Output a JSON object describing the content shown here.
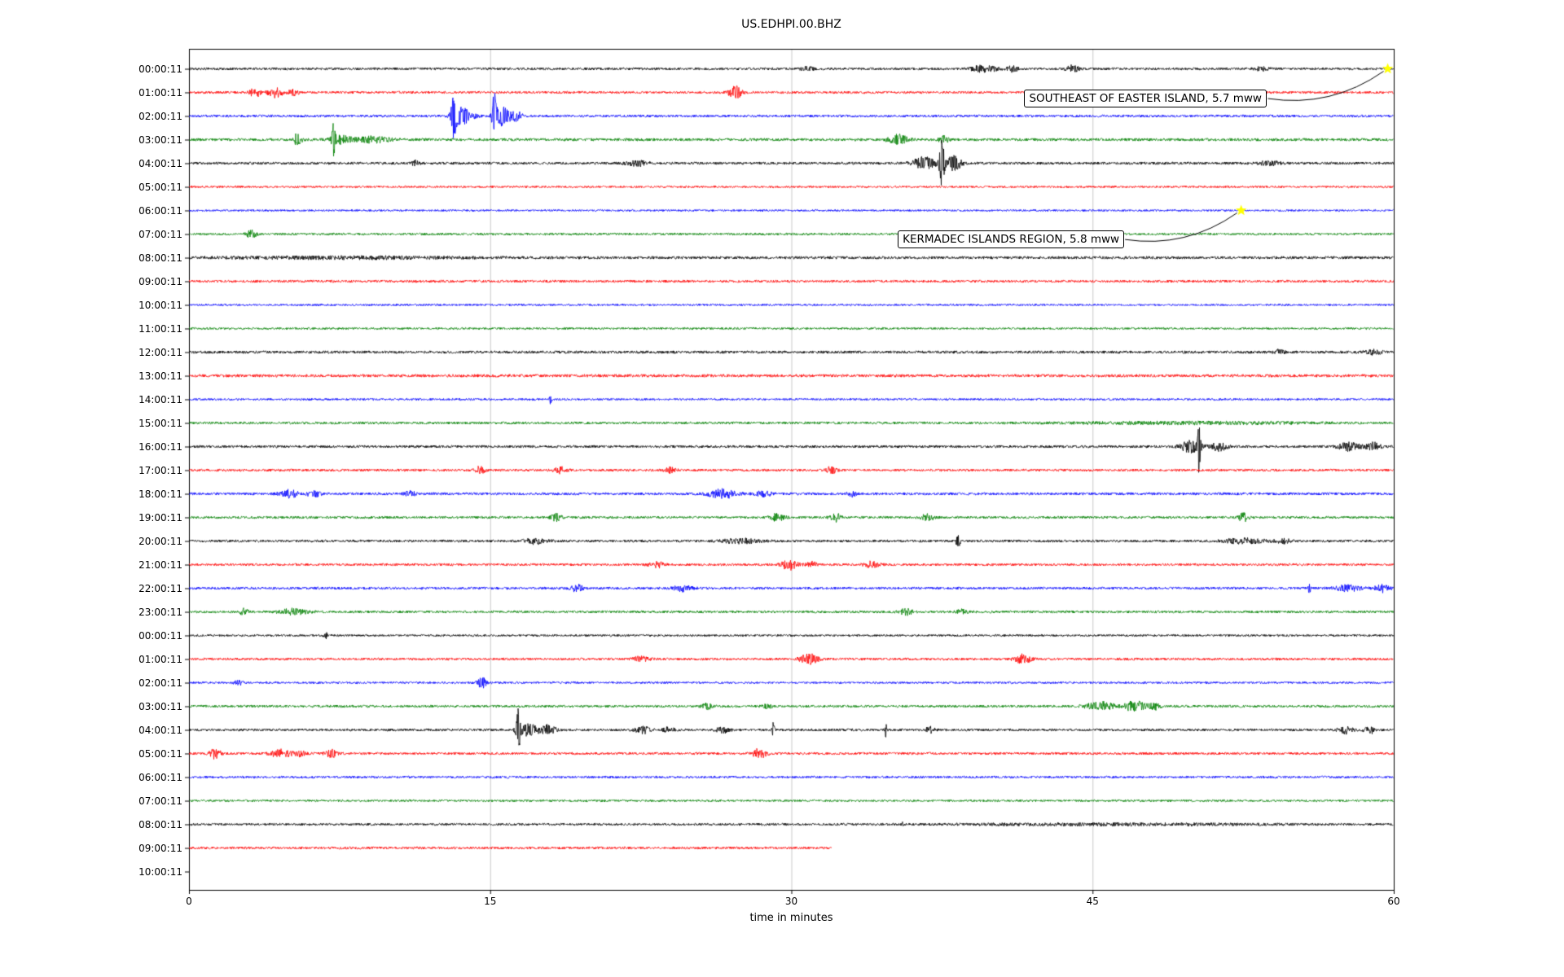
{
  "title": "US.EDHPI.00.BHZ",
  "axes": {
    "xlabel": "time in minutes",
    "x_ticks": [
      0,
      15,
      30,
      45,
      60
    ],
    "xlim": [
      0,
      60
    ],
    "grid_x": [
      15,
      30,
      45
    ],
    "grid_color": "#c8c8c8",
    "frame_color": "#000000"
  },
  "chart_data": {
    "type": "line",
    "variant": "helicorder-dayplot",
    "title": "US.EDHPI.00.BHZ",
    "xlabel": "time in minutes",
    "x_unit": "minutes",
    "xlim": [
      0,
      60
    ],
    "row_duration_minutes": 60,
    "grid": "vertical-only",
    "colors": {
      "black": "#000000",
      "red": "#ff0000",
      "blue": "#0000ff",
      "green": "#008000"
    },
    "rows": [
      {
        "label": "00:00:11",
        "color": "black",
        "base_amp": 1.5,
        "end": 60,
        "events": [
          [
            30.8,
            3,
            0.3
          ],
          [
            39.6,
            4.5,
            0.6
          ],
          [
            41,
            4,
            0.25
          ],
          [
            44,
            4,
            0.3
          ],
          [
            53.5,
            2.5,
            0.4
          ]
        ]
      },
      {
        "label": "01:00:11",
        "color": "red",
        "base_amp": 1.5,
        "end": 60,
        "events": [
          [
            3.3,
            6,
            0.25
          ],
          [
            4.3,
            6,
            0.35
          ],
          [
            5.2,
            4,
            0.25
          ],
          [
            27.2,
            8,
            0.3
          ]
        ]
      },
      {
        "label": "02:00:11",
        "color": "blue",
        "base_amp": 1.5,
        "end": 60,
        "events": [
          [
            13.2,
            26,
            0.12
          ],
          [
            13.6,
            10,
            0.5
          ],
          [
            15.2,
            28,
            0.1
          ],
          [
            15.6,
            12,
            0.35
          ],
          [
            16.3,
            6,
            0.3
          ]
        ]
      },
      {
        "label": "03:00:11",
        "color": "green",
        "base_amp": 1.7,
        "end": 60,
        "events": [
          [
            5.4,
            7,
            0.2
          ],
          [
            7.2,
            20,
            0.08
          ],
          [
            7.6,
            5,
            0.5
          ],
          [
            9.2,
            3.5,
            0.8
          ],
          [
            35.3,
            6,
            0.45
          ],
          [
            37.6,
            4,
            0.25
          ]
        ]
      },
      {
        "label": "04:00:11",
        "color": "black",
        "base_amp": 1.6,
        "end": 60,
        "events": [
          [
            11.3,
            3,
            0.2
          ],
          [
            22.3,
            3.5,
            0.5
          ],
          [
            36.6,
            7,
            0.6
          ],
          [
            37.5,
            28,
            0.12
          ],
          [
            38.1,
            9,
            0.35
          ],
          [
            53.8,
            2.5,
            0.5
          ]
        ]
      },
      {
        "label": "05:00:11",
        "color": "red",
        "base_amp": 1.3,
        "end": 60,
        "events": []
      },
      {
        "label": "06:00:11",
        "color": "blue",
        "base_amp": 1.2,
        "end": 60,
        "events": []
      },
      {
        "label": "07:00:11",
        "color": "green",
        "base_amp": 1.4,
        "end": 60,
        "events": [
          [
            3.1,
            4.5,
            0.25
          ]
        ]
      },
      {
        "label": "08:00:11",
        "color": "black",
        "base_amp": 1.7,
        "end": 60,
        "events": [
          [
            8,
            1.2,
            6
          ]
        ]
      },
      {
        "label": "09:00:11",
        "color": "red",
        "base_amp": 1.5,
        "end": 60,
        "events": []
      },
      {
        "label": "10:00:11",
        "color": "blue",
        "base_amp": 1.2,
        "end": 60,
        "events": []
      },
      {
        "label": "11:00:11",
        "color": "green",
        "base_amp": 1.3,
        "end": 60,
        "events": []
      },
      {
        "label": "12:00:11",
        "color": "black",
        "base_amp": 1.7,
        "end": 60,
        "events": [
          [
            54.3,
            2.5,
            0.25
          ],
          [
            59,
            2.5,
            0.4
          ]
        ]
      },
      {
        "label": "13:00:11",
        "color": "red",
        "base_amp": 1.8,
        "end": 60,
        "events": []
      },
      {
        "label": "14:00:11",
        "color": "blue",
        "base_amp": 1.3,
        "end": 60,
        "events": [
          [
            18,
            5,
            0.06
          ]
        ]
      },
      {
        "label": "15:00:11",
        "color": "green",
        "base_amp": 1.5,
        "end": 60,
        "events": [
          [
            50,
            1.2,
            6
          ]
        ]
      },
      {
        "label": "16:00:11",
        "color": "black",
        "base_amp": 1.6,
        "end": 60,
        "events": [
          [
            49.9,
            7,
            0.5
          ],
          [
            50.3,
            38,
            0.07
          ],
          [
            51.3,
            5,
            0.4
          ],
          [
            57.8,
            5,
            0.5
          ],
          [
            59,
            4.5,
            0.35
          ]
        ]
      },
      {
        "label": "17:00:11",
        "color": "red",
        "base_amp": 1.5,
        "end": 60,
        "events": [
          [
            14.5,
            4.5,
            0.25
          ],
          [
            18.5,
            3.5,
            0.35
          ],
          [
            24,
            3.5,
            0.25
          ],
          [
            32,
            4.5,
            0.25
          ]
        ]
      },
      {
        "label": "18:00:11",
        "color": "blue",
        "base_amp": 1.6,
        "end": 60,
        "events": [
          [
            5,
            4.5,
            0.5
          ],
          [
            6.2,
            3.5,
            0.35
          ],
          [
            11,
            3.5,
            0.25
          ],
          [
            26.6,
            5.5,
            0.7
          ],
          [
            28.6,
            4.5,
            0.35
          ],
          [
            33,
            3,
            0.25
          ]
        ]
      },
      {
        "label": "19:00:11",
        "color": "green",
        "base_amp": 1.5,
        "end": 60,
        "events": [
          [
            18.3,
            4.5,
            0.25
          ],
          [
            29.3,
            4.5,
            0.35
          ],
          [
            32.2,
            5,
            0.25
          ],
          [
            36.8,
            3.5,
            0.35
          ],
          [
            52.5,
            5,
            0.25
          ]
        ]
      },
      {
        "label": "20:00:11",
        "color": "black",
        "base_amp": 1.5,
        "end": 60,
        "events": [
          [
            17.3,
            3.5,
            0.6
          ],
          [
            27.5,
            2.5,
            1
          ],
          [
            38.3,
            8,
            0.1
          ],
          [
            52.5,
            3,
            1
          ],
          [
            54.5,
            2.5,
            0.4
          ]
        ]
      },
      {
        "label": "21:00:11",
        "color": "red",
        "base_amp": 1.5,
        "end": 60,
        "events": [
          [
            23.3,
            3.5,
            0.35
          ],
          [
            29.9,
            6,
            0.4
          ],
          [
            31,
            3.5,
            0.25
          ],
          [
            34,
            3.5,
            0.4
          ]
        ]
      },
      {
        "label": "22:00:11",
        "color": "blue",
        "base_amp": 1.5,
        "end": 60,
        "events": [
          [
            19.3,
            4.5,
            0.3
          ],
          [
            24.6,
            3.5,
            0.5
          ],
          [
            55.8,
            7,
            0.07
          ],
          [
            57.7,
            3.5,
            0.7
          ],
          [
            59.4,
            4.5,
            0.35
          ]
        ]
      },
      {
        "label": "23:00:11",
        "color": "green",
        "base_amp": 1.5,
        "end": 60,
        "events": [
          [
            2.7,
            3.5,
            0.25
          ],
          [
            5.2,
            3.5,
            0.7
          ],
          [
            35.7,
            3.5,
            0.35
          ],
          [
            38.5,
            2.5,
            0.3
          ]
        ]
      },
      {
        "label": "00:00:11",
        "color": "black",
        "base_amp": 1.3,
        "end": 60,
        "events": [
          [
            6.8,
            3.5,
            0.1
          ]
        ]
      },
      {
        "label": "01:00:11",
        "color": "red",
        "base_amp": 1.5,
        "end": 60,
        "events": [
          [
            22.5,
            3.5,
            0.35
          ],
          [
            30.9,
            6,
            0.45
          ],
          [
            41.5,
            5.5,
            0.4
          ]
        ]
      },
      {
        "label": "02:00:11",
        "color": "blue",
        "base_amp": 1.3,
        "end": 60,
        "events": [
          [
            2.5,
            2.5,
            0.25
          ],
          [
            14.6,
            6.5,
            0.25
          ]
        ]
      },
      {
        "label": "03:00:11",
        "color": "green",
        "base_amp": 1.5,
        "end": 60,
        "events": [
          [
            25.8,
            3.5,
            0.25
          ],
          [
            28.8,
            2.5,
            0.25
          ],
          [
            45.4,
            5,
            0.7
          ],
          [
            47.1,
            6.5,
            0.5
          ],
          [
            48.1,
            4,
            0.3
          ]
        ]
      },
      {
        "label": "04:00:11",
        "color": "black",
        "base_amp": 1.5,
        "end": 60,
        "events": [
          [
            16.4,
            28,
            0.1
          ],
          [
            16.9,
            7,
            0.5
          ],
          [
            17.9,
            6,
            0.35
          ],
          [
            22.6,
            4.5,
            0.35
          ],
          [
            23.9,
            3.5,
            0.25
          ],
          [
            26.6,
            3.5,
            0.35
          ],
          [
            29.1,
            9,
            0.06
          ],
          [
            34.7,
            8,
            0.06
          ],
          [
            36.9,
            3.5,
            0.25
          ],
          [
            57.6,
            4.5,
            0.35
          ],
          [
            58.8,
            4.5,
            0.25
          ]
        ]
      },
      {
        "label": "05:00:11",
        "color": "red",
        "base_amp": 1.5,
        "end": 60,
        "events": [
          [
            1.3,
            6,
            0.25
          ],
          [
            4.6,
            4.5,
            0.55
          ],
          [
            5.6,
            3.5,
            0.25
          ],
          [
            7.1,
            4.5,
            0.3
          ],
          [
            28.4,
            5.5,
            0.35
          ]
        ]
      },
      {
        "label": "06:00:11",
        "color": "blue",
        "base_amp": 1.4,
        "end": 60,
        "events": []
      },
      {
        "label": "07:00:11",
        "color": "green",
        "base_amp": 1.3,
        "end": 60,
        "events": []
      },
      {
        "label": "08:00:11",
        "color": "black",
        "base_amp": 1.4,
        "end": 60,
        "events": [
          [
            35.5,
            3.5,
            0.07
          ],
          [
            46,
            1,
            8
          ]
        ]
      },
      {
        "label": "09:00:11",
        "color": "red",
        "base_amp": 1.5,
        "end": 32,
        "events": []
      },
      {
        "label": "10:00:11",
        "color": "blue",
        "base_amp": 0,
        "end": 0,
        "blank": true,
        "events": []
      }
    ],
    "annotations": [
      {
        "text": "SOUTHEAST OF EASTER ISLAND, 5.7 mww",
        "marker": "yellow-star",
        "marker_color": "#ffff00",
        "target_min": 59.7,
        "target_row": 0,
        "text_min": 41.6,
        "text_row": 1.26
      },
      {
        "text": "KERMADEC ISLANDS REGION, 5.8 mww",
        "marker": "yellow-star",
        "marker_color": "#ffff00",
        "target_min": 52.4,
        "target_row": 6,
        "text_min": 35.3,
        "text_row": 7.23
      }
    ]
  }
}
